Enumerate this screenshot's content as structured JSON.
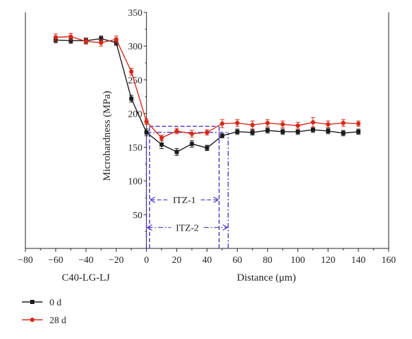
{
  "chart_data": {
    "type": "line",
    "title": "",
    "xlabel": "Distance (μm)",
    "ylabel": "Microhardness (MPa)",
    "corner_label": "C40-LG-LJ",
    "xlim": [
      -80,
      160
    ],
    "ylim": [
      0,
      350
    ],
    "x_ticks": [
      -80,
      -60,
      -40,
      -20,
      0,
      20,
      40,
      60,
      80,
      100,
      120,
      140,
      160
    ],
    "y_ticks": [
      50,
      100,
      150,
      200,
      250,
      300,
      350
    ],
    "grid": false,
    "legend_position": "bottom-left",
    "series": [
      {
        "name": "0 d",
        "color": "#1a1a1a",
        "marker": "square",
        "x": [
          -60,
          -50,
          -40,
          -30,
          -20,
          -10,
          0,
          10,
          20,
          30,
          40,
          50,
          60,
          70,
          80,
          90,
          100,
          110,
          120,
          130,
          140
        ],
        "y": [
          309,
          308,
          308,
          311,
          305,
          222,
          172,
          154,
          143,
          155,
          149,
          167,
          173,
          172,
          175,
          173,
          173,
          176,
          174,
          171,
          173
        ],
        "error": [
          4,
          4,
          4,
          4,
          4,
          5,
          5,
          6,
          5,
          5,
          4,
          3,
          4,
          4,
          4,
          4,
          4,
          4,
          4,
          4,
          4
        ]
      },
      {
        "name": "28 d",
        "color": "#d62a1a",
        "marker": "circle",
        "x": [
          -60,
          -50,
          -40,
          -30,
          -20,
          -10,
          0,
          10,
          20,
          30,
          40,
          50,
          60,
          70,
          80,
          90,
          100,
          110,
          120,
          130,
          140
        ],
        "y": [
          313,
          314,
          307,
          305,
          310,
          262,
          188,
          164,
          174,
          170,
          172,
          185,
          186,
          183,
          186,
          184,
          182,
          187,
          184,
          186,
          185
        ],
        "error": [
          5,
          5,
          4,
          5,
          5,
          5,
          4,
          4,
          4,
          5,
          4,
          6,
          5,
          6,
          5,
          5,
          5,
          7,
          5,
          5,
          4
        ]
      }
    ],
    "annotations": {
      "box_color": "#5a3ec8",
      "itz1": {
        "label": "ITZ-1",
        "x_range": [
          2,
          48
        ],
        "y_top": 181,
        "arrow_y": 72
      },
      "itz2": {
        "label": "ITZ-2",
        "x_range": [
          0,
          54
        ],
        "y_top": 172,
        "arrow_y": 31
      }
    }
  }
}
